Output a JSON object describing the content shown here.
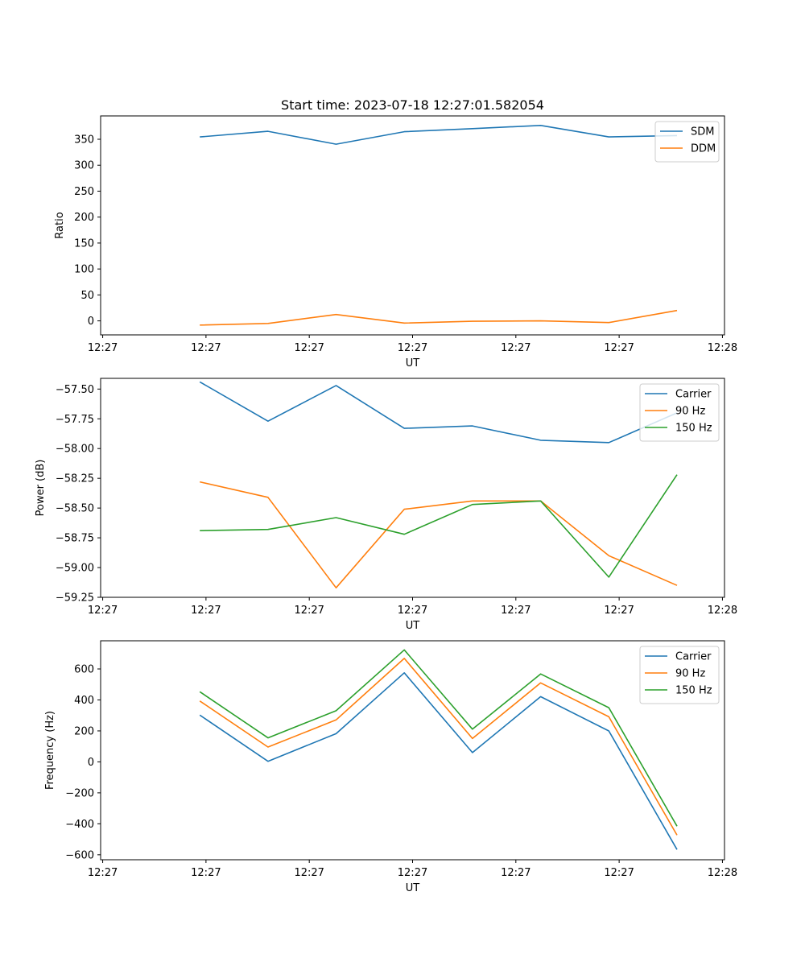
{
  "figure_title": "Start time: 2023-07-18 12:27:01.582054",
  "chart_data": [
    {
      "type": "line",
      "title": "Start time: 2023-07-18 12:27:01.582054",
      "xlabel": "UT",
      "ylabel": "Ratio",
      "x": [
        0.94,
        1.6,
        2.26,
        2.92,
        3.58,
        4.24,
        4.9,
        5.56
      ],
      "xlim": [
        -0.02,
        6.02
      ],
      "xticks": [
        0,
        1,
        2,
        3,
        4,
        5,
        6
      ],
      "xtick_labels": [
        "12:27",
        "12:27",
        "12:27",
        "12:27",
        "12:27",
        "12:27",
        "12:28"
      ],
      "ylim": [
        -27,
        395
      ],
      "yticks": [
        0,
        50,
        100,
        150,
        200,
        250,
        300,
        350
      ],
      "ytick_labels": [
        "0",
        "50",
        "100",
        "150",
        "200",
        "250",
        "300",
        "350"
      ],
      "legend_position": "top-right",
      "series": [
        {
          "name": "SDM",
          "color": "#1f77b4",
          "values": [
            354.5,
            365.4,
            340.5,
            364.6,
            370.5,
            376.7,
            354.5,
            357.2
          ]
        },
        {
          "name": "DDM",
          "color": "#ff7f0e",
          "values": [
            -8.1,
            -5.0,
            12.2,
            -4.2,
            -0.8,
            0.0,
            -3.3,
            20.0
          ]
        }
      ]
    },
    {
      "type": "line",
      "title": "",
      "xlabel": "UT",
      "ylabel": "Power (dB)",
      "x": [
        0.94,
        1.6,
        2.26,
        2.92,
        3.58,
        4.24,
        4.9,
        5.56
      ],
      "xlim": [
        -0.02,
        6.02
      ],
      "xticks": [
        0,
        1,
        2,
        3,
        4,
        5,
        6
      ],
      "xtick_labels": [
        "12:27",
        "12:27",
        "12:27",
        "12:27",
        "12:27",
        "12:27",
        "12:28"
      ],
      "ylim": [
        -59.25,
        -57.41
      ],
      "yticks": [
        -59.25,
        -59.0,
        -58.75,
        -58.5,
        -58.25,
        -58.0,
        -57.75,
        -57.5
      ],
      "ytick_labels": [
        "−59.25",
        "−59.00",
        "−58.75",
        "−58.50",
        "−58.25",
        "−58.00",
        "−57.75",
        "−57.50"
      ],
      "legend_position": "top-right",
      "series": [
        {
          "name": "Carrier",
          "color": "#1f77b4",
          "values": [
            -57.44,
            -57.77,
            -57.47,
            -57.83,
            -57.81,
            -57.93,
            -57.95,
            -57.7
          ]
        },
        {
          "name": "90 Hz",
          "color": "#ff7f0e",
          "values": [
            -58.28,
            -58.41,
            -59.17,
            -58.51,
            -58.44,
            -58.44,
            -58.9,
            -59.15
          ]
        },
        {
          "name": "150 Hz",
          "color": "#2ca02c",
          "values": [
            -58.69,
            -58.68,
            -58.58,
            -58.72,
            -58.47,
            -58.44,
            -59.08,
            -58.22
          ]
        }
      ]
    },
    {
      "type": "line",
      "title": "",
      "xlabel": "UT",
      "ylabel": "Frequency (Hz)",
      "x": [
        0.94,
        1.6,
        2.26,
        2.92,
        3.58,
        4.24,
        4.9,
        5.56
      ],
      "xlim": [
        -0.02,
        6.02
      ],
      "xticks": [
        0,
        1,
        2,
        3,
        4,
        5,
        6
      ],
      "xtick_labels": [
        "12:27",
        "12:27",
        "12:27",
        "12:27",
        "12:27",
        "12:27",
        "12:28"
      ],
      "ylim": [
        -632,
        782
      ],
      "yticks": [
        -600,
        -400,
        -200,
        0,
        200,
        400,
        600
      ],
      "ytick_labels": [
        "−600",
        "−400",
        "−200",
        "0",
        "200",
        "400",
        "600"
      ],
      "legend_position": "top-right",
      "series": [
        {
          "name": "Carrier",
          "color": "#1f77b4",
          "values": [
            302,
            4,
            182,
            575,
            60,
            421,
            200,
            -566
          ]
        },
        {
          "name": "90 Hz",
          "color": "#ff7f0e",
          "values": [
            393,
            96,
            271,
            668,
            151,
            510,
            291,
            -473
          ]
        },
        {
          "name": "150 Hz",
          "color": "#2ca02c",
          "values": [
            453,
            155,
            330,
            723,
            211,
            568,
            350,
            -415
          ]
        }
      ]
    }
  ]
}
